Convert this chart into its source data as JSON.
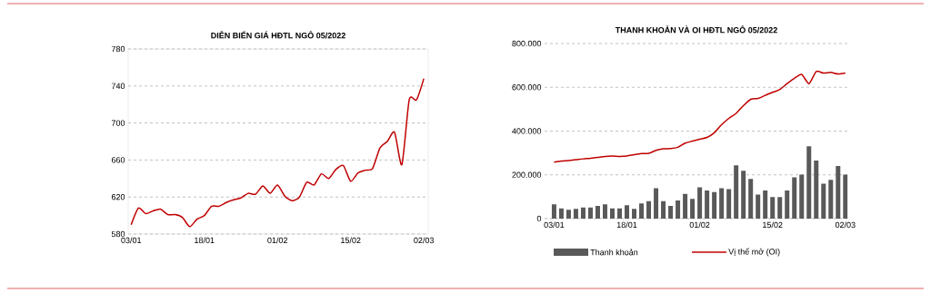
{
  "chart_data": [
    {
      "type": "line",
      "title": "DIỄN BIẾN GIÁ HĐTL NGÔ 05/2022",
      "categories": [
        "03/01",
        null,
        null,
        null,
        null,
        null,
        null,
        null,
        null,
        null,
        "18/01",
        null,
        null,
        null,
        null,
        null,
        null,
        null,
        null,
        null,
        "01/02",
        null,
        null,
        null,
        null,
        null,
        null,
        null,
        null,
        null,
        "15/02",
        null,
        null,
        null,
        null,
        null,
        null,
        null,
        null,
        null,
        "02/03"
      ],
      "series": [
        {
          "color": "#c00000",
          "values": [
            590,
            608,
            602,
            605,
            607,
            601,
            601,
            598,
            588,
            596,
            600,
            610,
            610,
            614,
            617,
            619,
            624,
            623,
            632,
            624,
            633,
            621,
            616,
            620,
            636,
            633,
            645,
            640,
            650,
            654,
            637,
            646,
            649,
            651,
            673,
            680,
            690,
            655,
            725,
            725,
            748
          ]
        }
      ],
      "ylim": [
        580,
        780
      ],
      "yticks": [
        580,
        620,
        660,
        700,
        740,
        780
      ],
      "grid": "y",
      "marker": "none",
      "line_style": "solid"
    },
    {
      "type": "bar",
      "title": "THANH KHOẢN VÀ OI HĐTL NGÔ 05/2022",
      "categories": [
        "03/01",
        null,
        null,
        null,
        null,
        null,
        null,
        null,
        null,
        null,
        "18/01",
        null,
        null,
        null,
        null,
        null,
        null,
        null,
        null,
        null,
        "01/02",
        null,
        null,
        null,
        null,
        null,
        null,
        null,
        null,
        null,
        "15/02",
        null,
        null,
        null,
        null,
        null,
        null,
        null,
        null,
        null,
        "02/03"
      ],
      "series": [
        {
          "name": "Thanh khoản",
          "color": "#595959",
          "values": [
            65000,
            47000,
            40000,
            44000,
            51000,
            51000,
            58000,
            65000,
            47000,
            47000,
            61000,
            44000,
            69000,
            80000,
            139000,
            80000,
            58000,
            83000,
            113000,
            90000,
            143000,
            128000,
            121000,
            139000,
            135000,
            243000,
            219000,
            181000,
            110000,
            128000,
            98000,
            98000,
            128000,
            189000,
            201000,
            331000,
            265000,
            160000,
            177000,
            240000,
            201000
          ]
        },
        {
          "name": "Vị thế mở (OI)",
          "type": "line",
          "color": "#c00000",
          "values": [
            258000,
            263000,
            265000,
            269000,
            273000,
            276000,
            280000,
            284000,
            286000,
            284000,
            286000,
            292000,
            297000,
            298000,
            312000,
            319000,
            320000,
            326000,
            345000,
            354000,
            363000,
            371000,
            392000,
            429000,
            458000,
            481000,
            516000,
            545000,
            549000,
            563000,
            577000,
            590000,
            617000,
            641000,
            659000,
            617000,
            672000,
            665000,
            668000,
            661000,
            665000
          ]
        }
      ],
      "ylim": [
        0,
        800000
      ],
      "yticks": [
        {
          "value": 0,
          "label": "0"
        },
        {
          "value": 200000,
          "label": "200.000"
        },
        {
          "value": 400000,
          "label": "400.000"
        },
        {
          "value": 600000,
          "label": "600.000"
        },
        {
          "value": 800000,
          "label": "800.000"
        }
      ],
      "grid": "y",
      "legend": "bottom"
    }
  ]
}
